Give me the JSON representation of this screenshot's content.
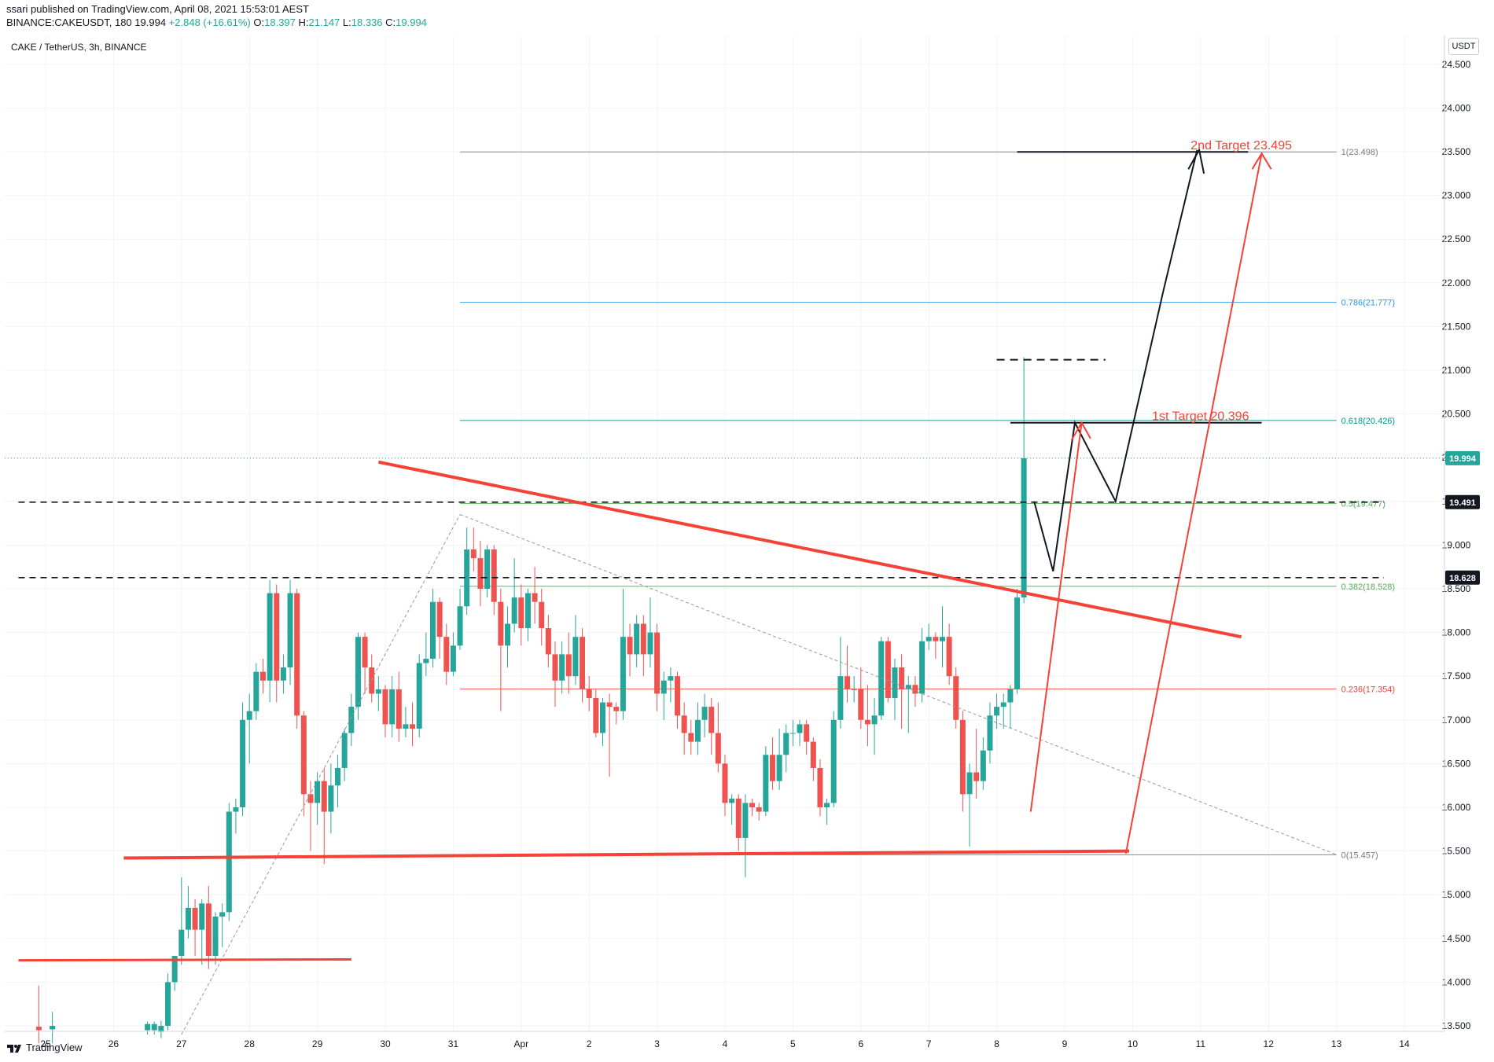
{
  "header": {
    "line1": "ssari published on TradingView.com, April 08, 2021 15:53:01 AEST",
    "ticker": "BINANCE:CAKEUSDT, 180",
    "last": "19.994",
    "change": "+2.848 (+16.61%)",
    "o_label": "O:",
    "o_value": "18.397",
    "h_label": "H:",
    "h_value": "21.147",
    "l_label": "L:",
    "l_value": "18.336",
    "c_label": "C:",
    "c_value": "19.994"
  },
  "symbol_title": "CAKE / TetherUS, 3h, BINANCE",
  "unit_button": "USDT",
  "footer": {
    "brand": "TradingView",
    "icon": "tradingview-logo-icon"
  },
  "colors": {
    "up": "#26a69a",
    "down": "#ef5350",
    "trendline": "#f44336",
    "header_up": "#26a69a"
  },
  "chart_data": {
    "type": "candlestick",
    "xlim": [
      24.6,
      14.7
    ],
    "ylim": [
      13.4,
      24.6
    ],
    "x_ticks": [
      {
        "x": 25,
        "label": "25"
      },
      {
        "x": 26,
        "label": "26"
      },
      {
        "x": 27,
        "label": "27"
      },
      {
        "x": 28,
        "label": "28"
      },
      {
        "x": 29,
        "label": "29"
      },
      {
        "x": 30,
        "label": "30"
      },
      {
        "x": 31,
        "label": "31"
      },
      {
        "x": 32,
        "label": "Apr"
      },
      {
        "x": 33,
        "label": "2"
      },
      {
        "x": 34,
        "label": "3"
      },
      {
        "x": 35,
        "label": "4"
      },
      {
        "x": 36,
        "label": "5"
      },
      {
        "x": 37,
        "label": "6"
      },
      {
        "x": 38,
        "label": "7"
      },
      {
        "x": 39,
        "label": "8"
      },
      {
        "x": 40,
        "label": "9"
      },
      {
        "x": 41,
        "label": "10"
      },
      {
        "x": 42,
        "label": "11"
      },
      {
        "x": 43,
        "label": "12"
      },
      {
        "x": 44,
        "label": "13"
      },
      {
        "x": 45,
        "label": "14"
      }
    ],
    "y_ticks": [
      "13.500",
      "14.000",
      "14.500",
      "15.000",
      "15.500",
      "16.000",
      "16.500",
      "17.000",
      "17.500",
      "18.000",
      "18.500",
      "19.000",
      "19.500",
      "20.000",
      "20.500",
      "21.000",
      "21.500",
      "22.000",
      "22.500",
      "23.000",
      "23.500",
      "24.000",
      "24.500"
    ],
    "price_labels": [
      {
        "y": 19.994,
        "text": "19.994",
        "color": "#26a69a"
      },
      {
        "y": 19.491,
        "text": "19.491",
        "color": "#131722"
      },
      {
        "y": 18.628,
        "text": "18.628",
        "color": "#131722"
      }
    ],
    "fib_levels": [
      {
        "level": "1",
        "price": 23.498,
        "label": "1(23.498)",
        "color": "#787b86"
      },
      {
        "level": "0.786",
        "price": 21.777,
        "label": "0.786(21.777)",
        "color": "#2196f3"
      },
      {
        "level": "0.618",
        "price": 20.426,
        "label": "0.618(20.426)",
        "color": "#009688"
      },
      {
        "level": "0.5",
        "price": 19.477,
        "label": "0.5(19.477)",
        "color": "#4caf50"
      },
      {
        "level": "0.382",
        "price": 18.528,
        "label": "0.382(18.528)",
        "color": "#4caf50"
      },
      {
        "level": "0.236",
        "price": 17.354,
        "label": "0.236(17.354)",
        "color": "#f44336"
      },
      {
        "level": "0",
        "price": 15.457,
        "label": "0(15.457)",
        "color": "#787b86"
      }
    ],
    "annotations": [
      {
        "text": "2nd Target 23.495",
        "x": 42.6,
        "y": 23.6,
        "color": "#f44336"
      },
      {
        "text": "1st Target 20.396",
        "x": 42.0,
        "y": 20.5,
        "color": "#f44336"
      }
    ],
    "candles": [
      [
        24.9,
        13.49,
        13.45,
        13.96,
        13.3
      ],
      [
        25.1,
        13.46,
        13.5,
        13.66,
        13.3
      ],
      [
        26.5,
        13.45,
        13.52,
        13.55,
        13.4
      ],
      [
        26.6,
        13.45,
        13.52,
        13.55,
        13.4
      ],
      [
        26.7,
        13.43,
        13.5,
        13.56,
        13.36
      ],
      [
        26.8,
        13.5,
        14.0,
        14.1,
        13.45
      ],
      [
        26.9,
        14.0,
        14.3,
        14.3,
        13.9
      ],
      [
        27.0,
        14.3,
        14.6,
        15.2,
        14.2
      ],
      [
        27.1,
        14.6,
        14.85,
        15.1,
        14.5
      ],
      [
        27.2,
        14.85,
        14.6,
        14.95,
        14.3
      ],
      [
        27.3,
        14.6,
        14.9,
        14.95,
        14.2
      ],
      [
        27.4,
        14.9,
        14.3,
        15.1,
        14.15
      ],
      [
        27.5,
        14.3,
        14.75,
        14.8,
        14.2
      ],
      [
        27.6,
        14.75,
        14.8,
        14.9,
        14.4
      ],
      [
        27.7,
        14.8,
        15.95,
        16.05,
        14.7
      ],
      [
        27.8,
        15.95,
        16.0,
        16.1,
        15.7
      ],
      [
        27.9,
        16.0,
        17.0,
        17.2,
        15.9
      ],
      [
        28.0,
        17.0,
        17.1,
        17.3,
        16.5
      ],
      [
        28.1,
        17.1,
        17.55,
        17.65,
        17.0
      ],
      [
        28.2,
        17.55,
        17.45,
        17.7,
        17.3
      ],
      [
        28.3,
        17.45,
        18.45,
        18.6,
        17.2
      ],
      [
        28.4,
        18.45,
        17.45,
        18.55,
        17.2
      ],
      [
        28.5,
        17.45,
        17.6,
        17.75,
        17.3
      ],
      [
        28.6,
        17.6,
        18.45,
        18.6,
        17.4
      ],
      [
        28.7,
        18.45,
        17.05,
        18.5,
        16.9
      ],
      [
        28.8,
        17.05,
        16.15,
        17.1,
        15.9
      ],
      [
        28.9,
        16.15,
        16.05,
        16.3,
        15.5
      ],
      [
        29.0,
        16.05,
        16.3,
        16.4,
        15.8
      ],
      [
        29.1,
        16.3,
        15.95,
        16.45,
        15.35
      ],
      [
        29.2,
        15.95,
        16.25,
        16.5,
        15.7
      ],
      [
        29.3,
        16.25,
        16.45,
        16.6,
        16.0
      ],
      [
        29.4,
        16.45,
        16.85,
        16.9,
        16.3
      ],
      [
        29.5,
        16.85,
        17.15,
        17.3,
        16.7
      ],
      [
        29.6,
        17.15,
        17.95,
        18.0,
        17.0
      ],
      [
        29.7,
        17.95,
        17.6,
        18.0,
        17.3
      ],
      [
        29.8,
        17.6,
        17.3,
        17.75,
        17.2
      ],
      [
        29.9,
        17.3,
        17.35,
        17.5,
        17.1
      ],
      [
        30.0,
        17.35,
        16.95,
        17.4,
        16.8
      ],
      [
        30.1,
        16.95,
        17.35,
        17.5,
        16.8
      ],
      [
        30.2,
        17.35,
        16.9,
        17.55,
        16.75
      ],
      [
        30.3,
        16.9,
        16.95,
        17.15,
        16.8
      ],
      [
        30.4,
        16.95,
        16.9,
        17.2,
        16.7
      ],
      [
        30.5,
        16.9,
        17.65,
        17.75,
        16.8
      ],
      [
        30.6,
        17.65,
        17.7,
        18.0,
        17.5
      ],
      [
        30.7,
        17.7,
        18.35,
        18.5,
        17.6
      ],
      [
        30.8,
        18.35,
        17.95,
        18.4,
        17.7
      ],
      [
        30.9,
        17.95,
        17.55,
        18.1,
        17.4
      ],
      [
        31.0,
        17.55,
        17.85,
        18.0,
        17.5
      ],
      [
        31.1,
        17.85,
        18.3,
        18.5,
        17.8
      ],
      [
        31.2,
        18.3,
        18.95,
        19.2,
        18.2
      ],
      [
        31.3,
        18.95,
        18.85,
        19.2,
        18.7
      ],
      [
        31.4,
        18.85,
        18.5,
        19.05,
        18.3
      ],
      [
        31.5,
        18.5,
        18.95,
        19.0,
        18.4
      ],
      [
        31.6,
        18.95,
        18.35,
        19.0,
        18.2
      ],
      [
        31.7,
        18.35,
        17.85,
        18.5,
        17.1
      ],
      [
        31.8,
        17.85,
        18.1,
        18.3,
        17.6
      ],
      [
        31.9,
        18.1,
        18.4,
        18.85,
        18.0
      ],
      [
        32.0,
        18.4,
        18.05,
        18.55,
        17.85
      ],
      [
        32.1,
        18.05,
        18.45,
        18.5,
        17.9
      ],
      [
        32.2,
        18.45,
        18.35,
        18.75,
        18.1
      ],
      [
        32.3,
        18.35,
        18.05,
        18.5,
        17.85
      ],
      [
        32.4,
        18.05,
        17.75,
        18.2,
        17.6
      ],
      [
        32.5,
        17.75,
        17.45,
        17.9,
        17.15
      ],
      [
        32.6,
        17.45,
        17.75,
        17.9,
        17.3
      ],
      [
        32.7,
        17.75,
        17.5,
        18.0,
        17.3
      ],
      [
        32.8,
        17.5,
        17.95,
        18.2,
        17.4
      ],
      [
        32.9,
        17.95,
        17.35,
        18.05,
        17.2
      ],
      [
        33.0,
        17.35,
        17.25,
        17.5,
        17.1
      ],
      [
        33.1,
        17.25,
        16.85,
        17.35,
        16.8
      ],
      [
        33.2,
        16.85,
        17.2,
        17.25,
        16.7
      ],
      [
        33.3,
        17.2,
        17.15,
        17.3,
        16.35
      ],
      [
        33.4,
        17.15,
        17.1,
        17.2,
        16.95
      ],
      [
        33.5,
        17.1,
        17.95,
        18.5,
        17.0
      ],
      [
        33.6,
        17.95,
        17.75,
        18.1,
        17.5
      ],
      [
        33.7,
        17.75,
        18.1,
        18.2,
        17.6
      ],
      [
        33.8,
        18.1,
        17.75,
        18.2,
        17.5
      ],
      [
        33.9,
        17.75,
        18.0,
        18.4,
        17.6
      ],
      [
        34.0,
        18.0,
        17.3,
        18.1,
        17.1
      ],
      [
        34.1,
        17.3,
        17.45,
        17.55,
        17.0
      ],
      [
        34.2,
        17.45,
        17.5,
        17.6,
        17.2
      ],
      [
        34.3,
        17.5,
        17.05,
        17.55,
        16.9
      ],
      [
        34.4,
        17.05,
        16.85,
        17.2,
        16.6
      ],
      [
        34.5,
        16.85,
        16.75,
        17.0,
        16.6
      ],
      [
        34.6,
        16.75,
        17.0,
        17.2,
        16.6
      ],
      [
        34.7,
        17.0,
        17.15,
        17.3,
        16.8
      ],
      [
        34.8,
        17.15,
        16.85,
        17.25,
        16.6
      ],
      [
        34.9,
        16.85,
        16.5,
        17.2,
        16.4
      ],
      [
        35.0,
        16.5,
        16.05,
        16.6,
        15.9
      ],
      [
        35.1,
        16.05,
        16.1,
        16.15,
        15.8
      ],
      [
        35.2,
        16.1,
        15.65,
        16.15,
        15.5
      ],
      [
        35.3,
        15.65,
        16.05,
        16.15,
        15.2
      ],
      [
        35.4,
        16.05,
        16.0,
        16.1,
        15.9
      ],
      [
        35.5,
        16.0,
        15.95,
        16.05,
        15.85
      ],
      [
        35.6,
        15.95,
        16.6,
        16.7,
        15.9
      ],
      [
        35.7,
        16.6,
        16.3,
        16.8,
        16.2
      ],
      [
        35.8,
        16.3,
        16.6,
        16.9,
        16.2
      ],
      [
        35.9,
        16.6,
        16.85,
        16.95,
        16.4
      ],
      [
        36.0,
        16.85,
        16.85,
        17.0,
        16.7
      ],
      [
        36.1,
        16.85,
        16.95,
        17.0,
        16.7
      ],
      [
        36.2,
        16.95,
        16.75,
        17.0,
        16.6
      ],
      [
        36.3,
        16.75,
        16.45,
        16.8,
        16.3
      ],
      [
        36.4,
        16.45,
        16.0,
        16.55,
        15.9
      ],
      [
        36.5,
        16.0,
        16.05,
        16.1,
        15.8
      ],
      [
        36.6,
        16.05,
        17.0,
        17.1,
        16.0
      ],
      [
        36.7,
        17.0,
        17.5,
        17.95,
        16.9
      ],
      [
        36.8,
        17.5,
        17.35,
        17.85,
        17.2
      ],
      [
        36.9,
        17.35,
        17.35,
        17.5,
        17.2
      ],
      [
        37.0,
        17.35,
        17.0,
        17.6,
        16.9
      ],
      [
        37.1,
        17.0,
        16.95,
        17.4,
        16.7
      ],
      [
        37.2,
        16.95,
        17.05,
        17.25,
        16.6
      ],
      [
        37.3,
        17.05,
        17.9,
        17.95,
        17.0
      ],
      [
        37.4,
        17.9,
        17.25,
        17.95,
        17.2
      ],
      [
        37.5,
        17.25,
        17.6,
        17.7,
        17.0
      ],
      [
        37.6,
        17.6,
        17.35,
        17.75,
        16.9
      ],
      [
        37.7,
        17.35,
        17.4,
        17.5,
        16.85
      ],
      [
        37.8,
        17.4,
        17.3,
        17.5,
        17.15
      ],
      [
        37.9,
        17.3,
        17.9,
        18.05,
        17.2
      ],
      [
        38.0,
        17.9,
        17.95,
        18.1,
        17.8
      ],
      [
        38.1,
        17.95,
        17.9,
        18.0,
        17.7
      ],
      [
        38.2,
        17.9,
        17.95,
        18.3,
        17.6
      ],
      [
        38.3,
        17.95,
        17.5,
        18.1,
        17.4
      ],
      [
        38.4,
        17.5,
        17.0,
        17.6,
        16.9
      ],
      [
        38.5,
        17.0,
        16.15,
        17.1,
        15.95
      ],
      [
        38.6,
        16.15,
        16.4,
        16.5,
        15.55
      ],
      [
        38.7,
        16.4,
        16.3,
        16.9,
        16.1
      ],
      [
        38.8,
        16.3,
        16.65,
        16.8,
        16.2
      ],
      [
        38.9,
        16.65,
        17.05,
        17.2,
        16.5
      ],
      [
        39.0,
        17.05,
        17.15,
        17.3,
        16.9
      ],
      [
        39.1,
        17.15,
        17.2,
        17.3,
        16.9
      ],
      [
        39.2,
        17.2,
        17.35,
        17.4,
        16.9
      ],
      [
        39.3,
        17.35,
        18.4,
        18.5,
        17.3
      ],
      [
        39.4,
        18.4,
        19.994,
        21.147,
        18.336
      ]
    ]
  }
}
